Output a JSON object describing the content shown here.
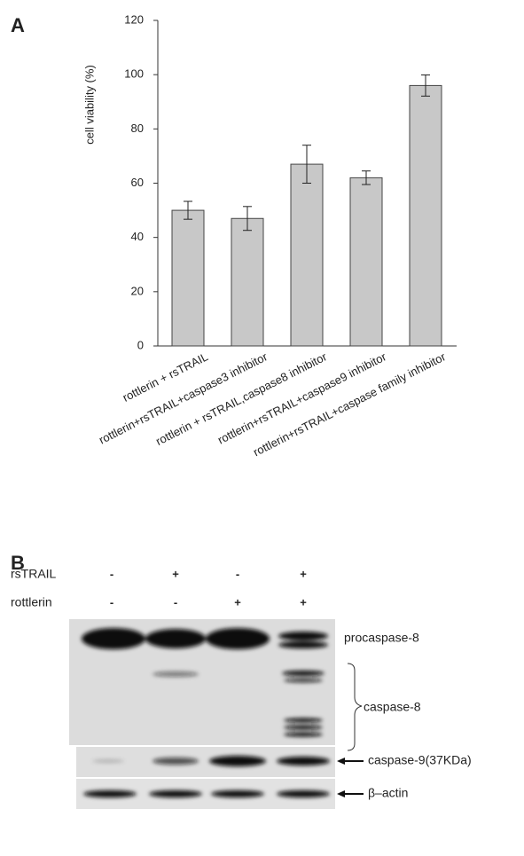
{
  "chart_data": {
    "type": "bar",
    "panel_label": "A",
    "ylabel": "cell viability (%)",
    "categories": [
      "rottlerin + rsTRAIL",
      "rottlerin+rsTRAIL+caspase3 inhibitor",
      "rottlerin + rsTRAIL,caspase8 inhibitor",
      "rottlerin+rsTRAIL+caspase9 inhibitor",
      "rottlerin+rsTRAIL+caspase family inhibitor"
    ],
    "values": [
      50,
      47,
      67,
      62,
      96
    ],
    "errors": [
      3.3,
      4.4,
      7,
      2.5,
      3.9
    ],
    "color": "#c8c8c8",
    "ylim": [
      0,
      120
    ],
    "yticks": [
      0,
      20,
      40,
      60,
      80,
      100,
      120
    ],
    "grid": false
  },
  "blot": {
    "panel_label": "B",
    "rows": [
      {
        "label": "rsTRAIL",
        "signs": [
          "-",
          "+",
          "-",
          "+"
        ]
      },
      {
        "label": "rottlerin",
        "signs": [
          "-",
          "-",
          "+",
          "+"
        ]
      }
    ],
    "bands": [
      "procaspase-8",
      "caspase-8",
      "caspase-9(37KDa)",
      "β–actin"
    ]
  }
}
